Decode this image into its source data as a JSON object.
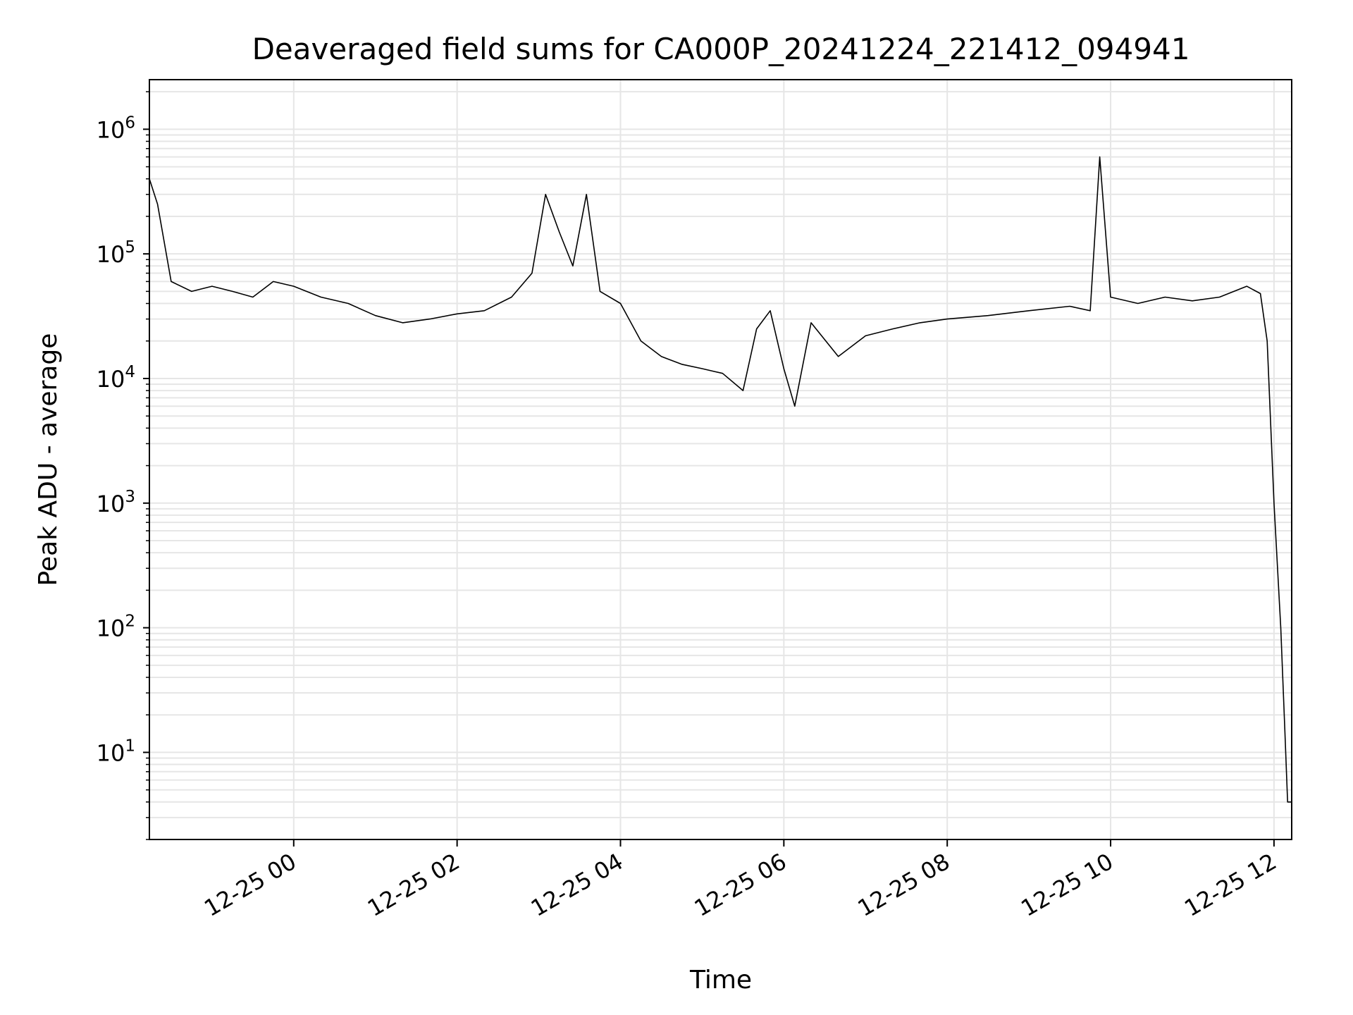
{
  "chart_data": {
    "type": "line",
    "title": "Deaveraged field sums for CA000P_20241224_221412_094941",
    "xlabel": "Time",
    "ylabel": "Peak ADU - average",
    "yscale": "log",
    "ylim": [
      2,
      2500000
    ],
    "xlim": [
      "2024-12-24 22:14",
      "2024-12-25 12:13"
    ],
    "x_ticks": [
      {
        "value": "2024-12-25 00:00",
        "label": "12-25 00"
      },
      {
        "value": "2024-12-25 02:00",
        "label": "12-25 02"
      },
      {
        "value": "2024-12-25 04:00",
        "label": "12-25 04"
      },
      {
        "value": "2024-12-25 06:00",
        "label": "12-25 06"
      },
      {
        "value": "2024-12-25 08:00",
        "label": "12-25 08"
      },
      {
        "value": "2024-12-25 10:00",
        "label": "12-25 10"
      },
      {
        "value": "2024-12-25 12:00",
        "label": "12-25 12"
      }
    ],
    "y_ticks": [
      {
        "value": 10,
        "base": "10",
        "exp": "1"
      },
      {
        "value": 100,
        "base": "10",
        "exp": "2"
      },
      {
        "value": 1000,
        "base": "10",
        "exp": "3"
      },
      {
        "value": 10000,
        "base": "10",
        "exp": "4"
      },
      {
        "value": 100000,
        "base": "10",
        "exp": "5"
      },
      {
        "value": 1000000,
        "base": "10",
        "exp": "6"
      }
    ],
    "grid": true,
    "line_color": "#000000",
    "grid_color": "#e6e6e6",
    "series": [
      {
        "x": [
          "2024-12-24 22:14",
          "2024-12-24 22:20",
          "2024-12-24 22:30",
          "2024-12-24 22:45",
          "2024-12-24 23:00",
          "2024-12-24 23:15",
          "2024-12-24 23:30",
          "2024-12-24 23:45",
          "2024-12-25 00:00",
          "2024-12-25 00:20",
          "2024-12-25 00:40",
          "2024-12-25 01:00",
          "2024-12-25 01:20",
          "2024-12-25 01:40",
          "2024-12-25 02:00",
          "2024-12-25 02:20",
          "2024-12-25 02:40",
          "2024-12-25 02:55",
          "2024-12-25 03:05",
          "2024-12-25 03:15",
          "2024-12-25 03:25",
          "2024-12-25 03:35",
          "2024-12-25 03:45",
          "2024-12-25 04:00",
          "2024-12-25 04:15",
          "2024-12-25 04:30",
          "2024-12-25 04:45",
          "2024-12-25 05:00",
          "2024-12-25 05:15",
          "2024-12-25 05:30",
          "2024-12-25 05:40",
          "2024-12-25 05:50",
          "2024-12-25 06:00",
          "2024-12-25 06:08",
          "2024-12-25 06:20",
          "2024-12-25 06:40",
          "2024-12-25 07:00",
          "2024-12-25 07:20",
          "2024-12-25 07:40",
          "2024-12-25 08:00",
          "2024-12-25 08:30",
          "2024-12-25 09:00",
          "2024-12-25 09:30",
          "2024-12-25 09:45",
          "2024-12-25 09:52",
          "2024-12-25 10:00",
          "2024-12-25 10:20",
          "2024-12-25 10:40",
          "2024-12-25 11:00",
          "2024-12-25 11:20",
          "2024-12-25 11:40",
          "2024-12-25 11:50",
          "2024-12-25 11:55",
          "2024-12-25 12:00",
          "2024-12-25 12:05",
          "2024-12-25 12:08",
          "2024-12-25 12:10",
          "2024-12-25 12:13"
        ],
        "y": [
          400000,
          250000,
          60000,
          50000,
          55000,
          50000,
          45000,
          60000,
          55000,
          45000,
          40000,
          32000,
          28000,
          30000,
          33000,
          35000,
          45000,
          70000,
          300000,
          150000,
          80000,
          300000,
          50000,
          40000,
          20000,
          15000,
          13000,
          12000,
          11000,
          8000,
          25000,
          35000,
          12000,
          6000,
          28000,
          15000,
          22000,
          25000,
          28000,
          30000,
          32000,
          35000,
          38000,
          35000,
          600000,
          45000,
          40000,
          45000,
          42000,
          45000,
          55000,
          48000,
          20000,
          1000,
          100,
          15,
          4,
          4
        ]
      }
    ]
  }
}
